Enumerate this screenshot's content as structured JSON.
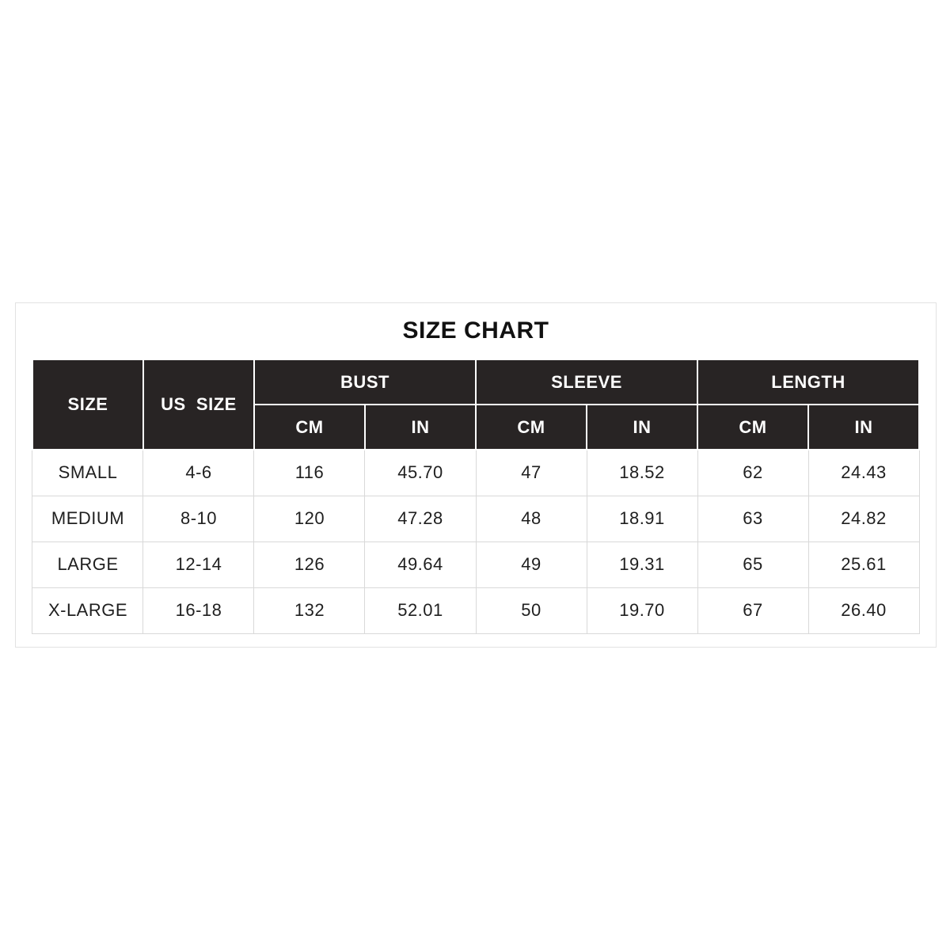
{
  "page": {
    "title": "SIZE CHART"
  },
  "colors": {
    "header_bg": "#282424",
    "header_text": "#ffffff",
    "cell_border": "#d9d9d9",
    "container_border": "#e2e2e2",
    "body_text": "#1f1f1f"
  },
  "table": {
    "header": {
      "size": "SIZE",
      "us_size": "US  SIZE",
      "groups": [
        {
          "label": "BUST",
          "sub": [
            "CM",
            "IN"
          ]
        },
        {
          "label": "SLEEVE",
          "sub": [
            "CM",
            "IN"
          ]
        },
        {
          "label": "LENGTH",
          "sub": [
            "CM",
            "IN"
          ]
        }
      ]
    },
    "rows": [
      [
        "SMALL",
        "4-6",
        "116",
        "45.70",
        "47",
        "18.52",
        "62",
        "24.43"
      ],
      [
        "MEDIUM",
        "8-10",
        "120",
        "47.28",
        "48",
        "18.91",
        "63",
        "24.82"
      ],
      [
        "LARGE",
        "12-14",
        "126",
        "49.64",
        "49",
        "19.31",
        "65",
        "25.61"
      ],
      [
        "X-LARGE",
        "16-18",
        "132",
        "52.01",
        "50",
        "19.70",
        "67",
        "26.40"
      ]
    ]
  },
  "chart_data": {
    "type": "table",
    "title": "SIZE CHART",
    "columns": [
      "SIZE",
      "US SIZE",
      "BUST CM",
      "BUST IN",
      "SLEEVE CM",
      "SLEEVE IN",
      "LENGTH CM",
      "LENGTH IN"
    ],
    "rows": [
      [
        "SMALL",
        "4-6",
        116,
        45.7,
        47,
        18.52,
        62,
        24.43
      ],
      [
        "MEDIUM",
        "8-10",
        120,
        47.28,
        48,
        18.91,
        63,
        24.82
      ],
      [
        "LARGE",
        "12-14",
        126,
        49.64,
        49,
        19.31,
        65,
        25.61
      ],
      [
        "X-LARGE",
        "16-18",
        132,
        52.01,
        50,
        19.7,
        67,
        26.4
      ]
    ]
  }
}
